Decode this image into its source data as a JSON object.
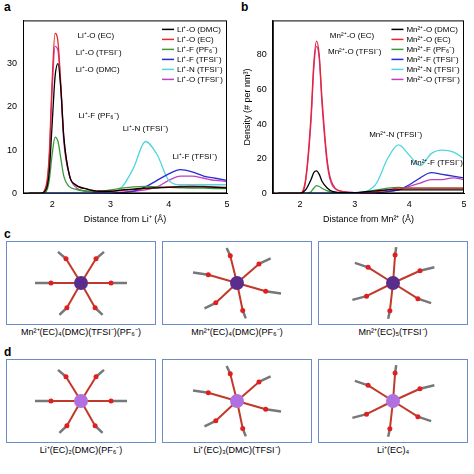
{
  "chart_data": [
    {
      "type": "line",
      "panel": "a",
      "x_label": "Distance from Li⁺ (Å)",
      "x": [
        1.6,
        1.8,
        1.9,
        1.95,
        2.0,
        2.05,
        2.1,
        2.15,
        2.2,
        2.3,
        2.4,
        2.6,
        2.8,
        3.0,
        3.2,
        3.4,
        3.6,
        3.8,
        4.0,
        4.2,
        4.4,
        4.6,
        4.8,
        5.0
      ],
      "series": [
        {
          "name": "Li⁺-O (DMC)",
          "color": "#000000",
          "values": [
            0,
            0,
            1,
            5,
            16,
            27,
            30,
            24,
            13,
            4,
            2,
            1,
            0.5,
            0.5,
            0.8,
            1,
            1.2,
            1.3,
            1.4,
            1.5,
            1.5,
            1.5,
            1.4,
            1.3
          ]
        },
        {
          "name": "Li⁺-O (EC)",
          "color": "#e8262a",
          "values": [
            0,
            0,
            2,
            9,
            26,
            37,
            35,
            25,
            13,
            4,
            2,
            1,
            0.5,
            0.5,
            0.7,
            0.9,
            1.1,
            1.3,
            1.5,
            1.6,
            1.7,
            1.6,
            1.5,
            1.4
          ]
        },
        {
          "name": "Li⁺-F (PF₆⁻)",
          "color": "#3a9a3a",
          "values": [
            0,
            0,
            0.5,
            3,
            9,
            13,
            12,
            8,
            4,
            1.5,
            1,
            0.5,
            0.5,
            0.8,
            1.2,
            1.5,
            1.6,
            1.5,
            1.4,
            1.3,
            1.2,
            1.2,
            1.1,
            1.1
          ]
        },
        {
          "name": "Li⁺-F (TFSI⁻)",
          "color": "#2b2bd6",
          "values": [
            0,
            0,
            0,
            0,
            0,
            0,
            0,
            0,
            0,
            0,
            0,
            0,
            0,
            0,
            0.2,
            0.5,
            1.5,
            3,
            4.5,
            5.5,
            5,
            4,
            3.5,
            3
          ]
        },
        {
          "name": "Li⁺-N (TFSI⁻)",
          "color": "#4fd6e0",
          "values": [
            0,
            0,
            0,
            0,
            0,
            0,
            0,
            0,
            0,
            0,
            0,
            0,
            0,
            0.2,
            1.5,
            6,
            12,
            9,
            3,
            2,
            2,
            2,
            2,
            2
          ]
        },
        {
          "name": "Li⁺-O (TFSI⁻)",
          "color": "#c040c0",
          "values": [
            0,
            0,
            1.5,
            8,
            24,
            34,
            33,
            24,
            12,
            4,
            1.5,
            0.5,
            0.2,
            0.2,
            0.3,
            0.5,
            0.8,
            1.5,
            3,
            4,
            4,
            3.5,
            3,
            2.8
          ]
        }
      ],
      "xlim": [
        1.5,
        5
      ],
      "xticks": [
        2,
        3,
        4,
        5
      ],
      "ylim": [
        0,
        40
      ],
      "yticks": [
        0,
        10,
        20,
        30
      ],
      "grid": false,
      "legend": "upper right",
      "annotations": [
        {
          "text": "Li⁺-O (EC)",
          "x": 2.75,
          "y": 36.5
        },
        {
          "text": "Li⁺-O (TFSI⁻)",
          "x": 2.8,
          "y": 32.5
        },
        {
          "text": "Li⁺-O (DMC)",
          "x": 2.78,
          "y": 28.5
        },
        {
          "text": "Li⁺-F (PF₆⁻)",
          "x": 2.8,
          "y": 18
        },
        {
          "text": "Li⁺-N (TFSI⁻)",
          "x": 3.6,
          "y": 15
        },
        {
          "text": "Li⁺-F (TFSI⁻)",
          "x": 4.45,
          "y": 8.5
        }
      ]
    },
    {
      "type": "line",
      "panel": "b",
      "x_label": "Distance from Mn²⁺ (Å)",
      "y_label": "Density (# per nm³)",
      "x": [
        1.6,
        1.9,
        2.0,
        2.1,
        2.2,
        2.25,
        2.3,
        2.35,
        2.4,
        2.5,
        2.6,
        2.8,
        3.0,
        3.2,
        3.4,
        3.6,
        3.8,
        4.0,
        4.2,
        4.4,
        4.6,
        4.8,
        5.0
      ],
      "series": [
        {
          "name": "Mn²⁺-O (DMC)",
          "color": "#000000",
          "values": [
            0,
            0,
            0,
            2,
            8,
            12,
            13,
            11,
            7,
            3,
            1,
            0.5,
            0.5,
            1,
            1.5,
            2,
            2,
            2,
            2,
            2,
            2,
            2,
            2
          ]
        },
        {
          "name": "Mn²⁺-O (EC)",
          "color": "#e8262a",
          "values": [
            0,
            0,
            0,
            8,
            45,
            75,
            88,
            80,
            55,
            18,
            5,
            1,
            0.5,
            0.5,
            1,
            2,
            3,
            3,
            3,
            3,
            3,
            3,
            3
          ]
        },
        {
          "name": "Mn²⁺-F (PF₆⁻)",
          "color": "#3a9a3a",
          "values": [
            0,
            0,
            0,
            0,
            1,
            3,
            4.5,
            4,
            3,
            1.5,
            0.5,
            0.3,
            0.5,
            1,
            2,
            3,
            3.5,
            3,
            3,
            3,
            3,
            3,
            3
          ]
        },
        {
          "name": "Mn²⁺-F (TFSI⁻)",
          "color": "#2b2bd6",
          "values": [
            0,
            0,
            0,
            0,
            0,
            0,
            0,
            0,
            0,
            0,
            0,
            0,
            0,
            0,
            0.3,
            1,
            2,
            5,
            9,
            12,
            11,
            10,
            9
          ]
        },
        {
          "name": "Mn²⁺-N (TFSI⁻)",
          "color": "#4fd6e0",
          "values": [
            0,
            0,
            0,
            0,
            0,
            0,
            0,
            0,
            0,
            0,
            0,
            0,
            0,
            1,
            6,
            20,
            28,
            22,
            16,
            23,
            25,
            24,
            20
          ]
        },
        {
          "name": "Mn²⁺-O (TFSI⁻)",
          "color": "#c040c0",
          "values": [
            0,
            0,
            0,
            7,
            42,
            72,
            85,
            78,
            52,
            16,
            4,
            1,
            0.5,
            0.3,
            0.5,
            1,
            2,
            4,
            6,
            8,
            8,
            9,
            8
          ]
        }
      ],
      "xlim": [
        1.5,
        5
      ],
      "xticks": [
        2,
        3,
        4,
        5
      ],
      "ylim": [
        0,
        100
      ],
      "yticks": [
        0,
        20,
        40,
        60,
        80
      ],
      "grid": false,
      "legend": "upper right",
      "annotations": [
        {
          "text": "Mn²⁺-O (EC)",
          "x": 2.95,
          "y": 91
        },
        {
          "text": "Mn²⁺-O (TFSI⁻)",
          "x": 3.0,
          "y": 82
        },
        {
          "text": "Mn²⁺-N (TFSI⁻)",
          "x": 3.75,
          "y": 34
        },
        {
          "text": "Mn²⁺-F (TFSI⁻)",
          "x": 4.5,
          "y": 17.5
        }
      ]
    }
  ],
  "structures": [
    {
      "panel": "c",
      "color": "#5a2d8c",
      "labels": [
        "Mn²⁺(EC)₄(DMC)(TFSI⁻)(PF₆⁻)",
        "Mn²⁺(EC)₄(DMC)(PF₆⁻)",
        "Mn²⁺(EC)₅(TFSI⁻)"
      ]
    },
    {
      "panel": "d",
      "color": "#b070e0",
      "labels": [
        "Li⁺(EC)₂(DMC)(PF₆⁻)",
        "Li⁺(EC)₃(DMC)(TFSI⁻)",
        "Li⁺(EC)₄"
      ]
    }
  ]
}
